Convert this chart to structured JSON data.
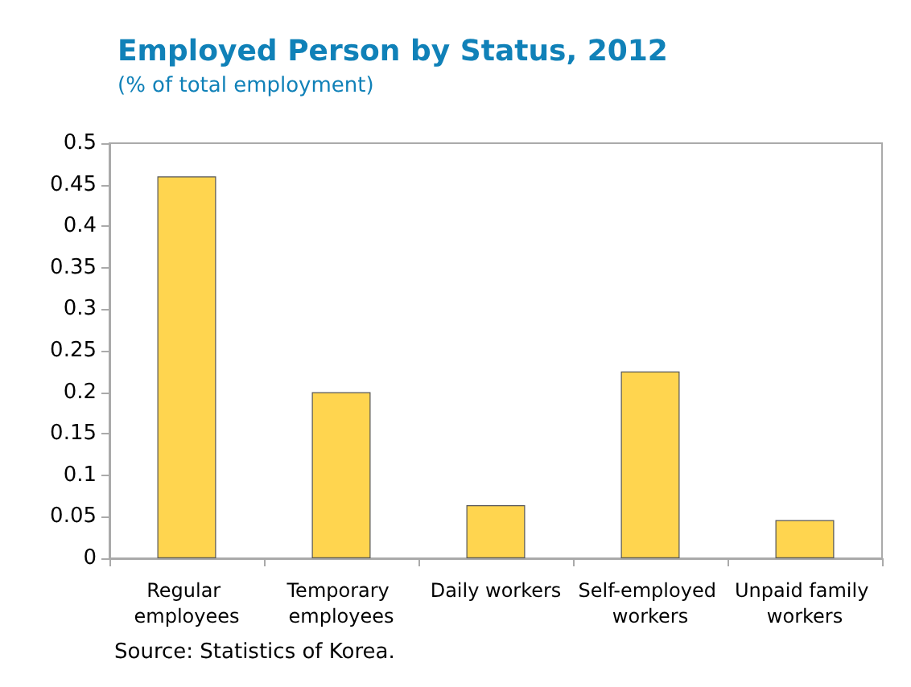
{
  "chart_data": {
    "type": "bar",
    "title": "Employed Person by Status, 2012",
    "subtitle": "(% of total employment)",
    "categories": [
      "Regular employees",
      "Temporary employees",
      "Daily workers",
      "Self-employed workers",
      "Unpaid family workers"
    ],
    "values": [
      0.46,
      0.2,
      0.064,
      0.225,
      0.046
    ],
    "color": "#ffd54f",
    "ylim": [
      0,
      0.5
    ],
    "yticks": [
      0,
      0.05,
      0.1,
      0.15,
      0.2,
      0.25,
      0.3,
      0.35,
      0.4,
      0.45,
      0.5
    ],
    "grid": false,
    "annotations": [
      "Source: Statistics of Korea."
    ]
  }
}
